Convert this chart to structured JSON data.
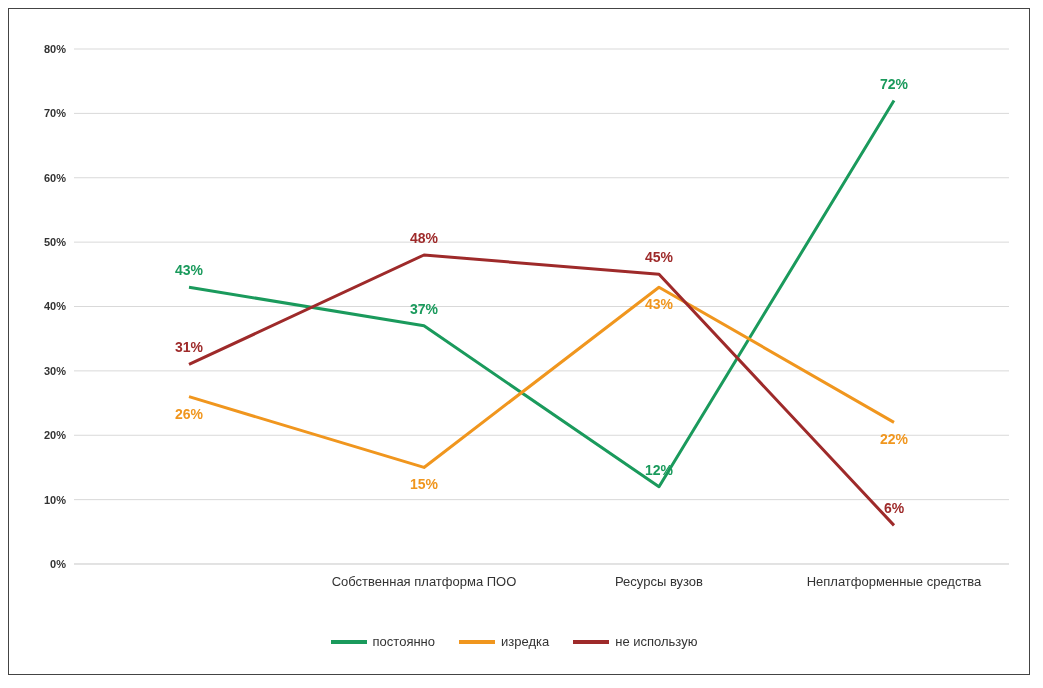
{
  "chart_data": {
    "type": "line",
    "categories": [
      null,
      "Собственная платформа ПОО",
      "Ресурсы вузов",
      "Неплатформенные средства"
    ],
    "series": [
      {
        "name": "постоянно",
        "color": "#1a9a5c",
        "values": [
          43,
          37,
          12,
          72
        ],
        "value_labels": [
          "43%",
          "37%",
          "12%",
          "72%"
        ]
      },
      {
        "name": "изредка",
        "color": "#f0961e",
        "values": [
          26,
          15,
          43,
          22
        ],
        "value_labels": [
          "26%",
          "15%",
          "43%",
          "22%"
        ]
      },
      {
        "name": "не использую",
        "color": "#9e2a2a",
        "values": [
          31,
          48,
          45,
          6
        ],
        "value_labels": [
          "31%",
          "48%",
          "45%",
          "6%"
        ]
      }
    ],
    "ylim": [
      0,
      80
    ],
    "yticks": [
      {
        "value": 0,
        "label": "0%"
      },
      {
        "value": 10,
        "label": "10%"
      },
      {
        "value": 20,
        "label": "20%"
      },
      {
        "value": 30,
        "label": "30%"
      },
      {
        "value": 40,
        "label": "40%"
      },
      {
        "value": 50,
        "label": "50%"
      },
      {
        "value": 60,
        "label": "60%"
      },
      {
        "value": 70,
        "label": "70%"
      },
      {
        "value": 80,
        "label": "80%"
      }
    ],
    "grid": "y",
    "legend": "bottom",
    "marker": "none",
    "line_style": "solid"
  }
}
